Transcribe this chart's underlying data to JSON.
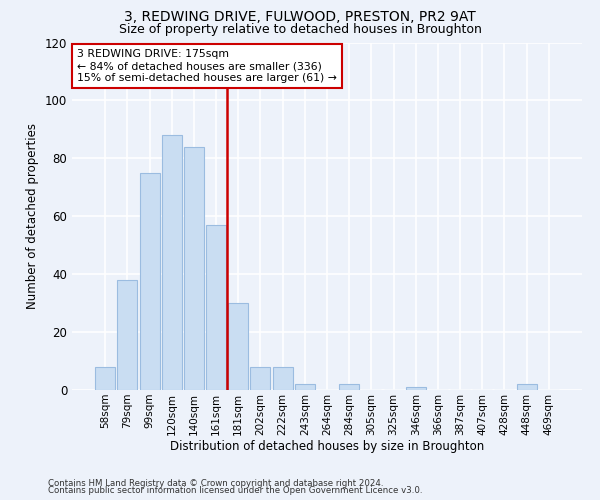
{
  "title1": "3, REDWING DRIVE, FULWOOD, PRESTON, PR2 9AT",
  "title2": "Size of property relative to detached houses in Broughton",
  "xlabel": "Distribution of detached houses by size in Broughton",
  "ylabel": "Number of detached properties",
  "bin_labels": [
    "58sqm",
    "79sqm",
    "99sqm",
    "120sqm",
    "140sqm",
    "161sqm",
    "181sqm",
    "202sqm",
    "222sqm",
    "243sqm",
    "264sqm",
    "284sqm",
    "305sqm",
    "325sqm",
    "346sqm",
    "366sqm",
    "387sqm",
    "407sqm",
    "428sqm",
    "448sqm",
    "469sqm"
  ],
  "bar_heights": [
    8,
    38,
    75,
    88,
    84,
    57,
    30,
    8,
    8,
    2,
    0,
    2,
    0,
    0,
    1,
    0,
    0,
    0,
    0,
    2,
    0
  ],
  "bar_color": "#c9ddf2",
  "bar_edge_color": "#9bbce0",
  "annotation_text": "3 REDWING DRIVE: 175sqm\n← 84% of detached houses are smaller (336)\n15% of semi-detached houses are larger (61) →",
  "annotation_box_color": "#ffffff",
  "annotation_box_edge_color": "#cc0000",
  "vline_color": "#cc0000",
  "ylim": [
    0,
    120
  ],
  "yticks": [
    0,
    20,
    40,
    60,
    80,
    100,
    120
  ],
  "footer1": "Contains HM Land Registry data © Crown copyright and database right 2024.",
  "footer2": "Contains public sector information licensed under the Open Government Licence v3.0.",
  "background_color": "#edf2fa",
  "grid_color": "#ffffff"
}
